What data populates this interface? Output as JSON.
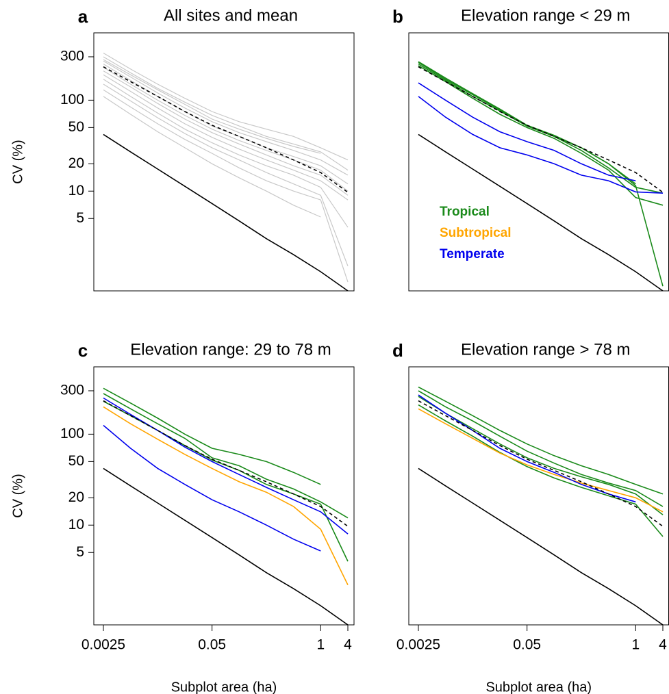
{
  "chart_data": [
    {
      "type": "line",
      "panel_label": "a",
      "title": "All sites and mean",
      "y_label": "CV (%)",
      "log_y": true,
      "ylim": [
        0.8,
        550
      ],
      "yticks": [
        5,
        10,
        20,
        50,
        100,
        300
      ],
      "categories": [
        null,
        null,
        null,
        null,
        null,
        null,
        null,
        null,
        null,
        null
      ],
      "series": [
        {
          "color": "#c8c8c8",
          "values": [
            330,
            220,
            150,
            105,
            75,
            58,
            48,
            40,
            30,
            22
          ]
        },
        {
          "color": "#c8c8c8",
          "values": [
            300,
            200,
            135,
            95,
            68,
            52,
            40,
            33,
            27,
            17
          ]
        },
        {
          "color": "#c8c8c8",
          "values": [
            270,
            180,
            120,
            82,
            58,
            44,
            35,
            28,
            22,
            15
          ]
        },
        {
          "color": "#c8c8c8",
          "values": [
            250,
            165,
            110,
            75,
            52,
            40,
            30,
            24,
            19,
            12
          ]
        },
        {
          "color": "#c8c8c8",
          "values": [
            230,
            150,
            100,
            68,
            48,
            36,
            28,
            22,
            17,
            10
          ]
        },
        {
          "color": "#c8c8c8",
          "values": [
            210,
            140,
            92,
            62,
            44,
            33,
            25,
            19,
            15,
            9
          ]
        },
        {
          "color": "#c8c8c8",
          "values": [
            190,
            125,
            82,
            55,
            39,
            29,
            22,
            17,
            13,
            8
          ]
        },
        {
          "color": "#c8c8c8",
          "values": [
            170,
            110,
            72,
            48,
            34,
            25,
            19,
            15,
            11,
            4
          ]
        },
        {
          "color": "#c8c8c8",
          "values": [
            150,
            98,
            64,
            43,
            30,
            22,
            16,
            12,
            9,
            1.5
          ]
        },
        {
          "color": "#c8c8c8",
          "values": [
            130,
            84,
            55,
            37,
            26,
            18,
            13,
            10,
            8,
            1
          ]
        },
        {
          "color": "#c8c8c8",
          "values": [
            110,
            70,
            45,
            30,
            20,
            14,
            10,
            7,
            5.2,
            null
          ]
        },
        {
          "color": "#c8c8c8",
          "values": [
            280,
            190,
            130,
            90,
            62,
            48,
            38,
            31,
            26,
            null
          ]
        },
        {
          "color": "#000000",
          "dashed": true,
          "values": [
            233,
            160,
            110,
            75,
            53,
            40,
            30,
            22,
            16,
            9.7
          ]
        },
        {
          "color": "#000000",
          "values": [
            42,
            27,
            17.5,
            11.3,
            7.3,
            4.7,
            3.0,
            2.0,
            1.3,
            0.8
          ]
        }
      ]
    },
    {
      "type": "line",
      "panel_label": "b",
      "title": "Elevation range < 29 m",
      "log_y": true,
      "ylim": [
        0.8,
        550
      ],
      "categories": [
        null,
        null,
        null,
        null,
        null,
        null,
        null,
        null,
        null,
        null
      ],
      "legend": [
        {
          "label": "Tropical",
          "color": "#1a8a1a"
        },
        {
          "label": "Subtropical",
          "color": "#ffa500"
        },
        {
          "label": "Temperate",
          "color": "#0000ee"
        }
      ],
      "series": [
        {
          "color": "#1a8a1a",
          "values": [
            260,
            170,
            115,
            78,
            52,
            40,
            28,
            18,
            11,
            9.5
          ]
        },
        {
          "color": "#1a8a1a",
          "values": [
            250,
            165,
            110,
            76,
            52,
            40,
            30,
            20,
            12,
            null
          ]
        },
        {
          "color": "#1a8a1a",
          "values": [
            240,
            160,
            105,
            70,
            50,
            38,
            26,
            17,
            8.5,
            7
          ]
        },
        {
          "color": "#1a8a1a",
          "values": [
            265,
            175,
            118,
            80,
            53,
            41,
            30,
            20,
            11.5,
            0.9
          ]
        },
        {
          "color": "#0000ee",
          "values": [
            155,
            100,
            65,
            45,
            35,
            28,
            20,
            15,
            13,
            null
          ]
        },
        {
          "color": "#0000ee",
          "values": [
            110,
            65,
            42,
            30,
            25,
            20,
            15,
            13,
            9.8,
            9.5
          ]
        },
        {
          "color": "#000000",
          "dashed": true,
          "values": [
            233,
            160,
            110,
            75,
            53,
            40,
            30,
            22,
            16,
            9.7
          ]
        },
        {
          "color": "#000000",
          "values": [
            42,
            27,
            17.5,
            11.3,
            7.3,
            4.7,
            3.0,
            2.0,
            1.3,
            0.8
          ]
        }
      ]
    },
    {
      "type": "line",
      "panel_label": "c",
      "title": "Elevation range: 29 to 78 m",
      "y_label": "CV (%)",
      "x_label": "Subplot area (ha)",
      "log_y": true,
      "ylim": [
        0.8,
        550
      ],
      "yticks": [
        5,
        10,
        20,
        50,
        100,
        300
      ],
      "categories": [
        "0.0025",
        null,
        null,
        null,
        "0.05",
        null,
        null,
        null,
        "1",
        "4"
      ],
      "series": [
        {
          "color": "#1a8a1a",
          "values": [
            320,
            220,
            150,
            100,
            70,
            60,
            50,
            38,
            28,
            null
          ]
        },
        {
          "color": "#1a8a1a",
          "values": [
            280,
            190,
            130,
            90,
            55,
            45,
            32,
            25,
            18,
            12
          ]
        },
        {
          "color": "#1a8a1a",
          "values": [
            230,
            160,
            110,
            75,
            52,
            40,
            28,
            22,
            17,
            4
          ]
        },
        {
          "color": "#ffa500",
          "values": [
            200,
            130,
            88,
            60,
            42,
            30,
            23,
            16,
            9,
            2.2
          ]
        },
        {
          "color": "#0000ee",
          "values": [
            125,
            70,
            42,
            28,
            19,
            14,
            10,
            7,
            5.2,
            null
          ]
        },
        {
          "color": "#0000ee",
          "values": [
            250,
            165,
            110,
            72,
            50,
            36,
            26,
            19,
            14,
            8
          ]
        },
        {
          "color": "#000000",
          "dashed": true,
          "values": [
            233,
            160,
            110,
            75,
            53,
            40,
            30,
            22,
            16,
            9.7
          ]
        },
        {
          "color": "#000000",
          "values": [
            42,
            27,
            17.5,
            11.3,
            7.3,
            4.7,
            3.0,
            2.0,
            1.3,
            0.8
          ]
        }
      ]
    },
    {
      "type": "line",
      "panel_label": "d",
      "title": "Elevation range > 78 m",
      "x_label": "Subplot area (ha)",
      "log_y": true,
      "ylim": [
        0.8,
        550
      ],
      "categories": [
        "0.0025",
        null,
        null,
        null,
        "0.05",
        null,
        null,
        null,
        "1",
        "4"
      ],
      "series": [
        {
          "color": "#1a8a1a",
          "values": [
            330,
            230,
            160,
            110,
            78,
            58,
            45,
            36,
            28,
            22
          ]
        },
        {
          "color": "#1a8a1a",
          "values": [
            300,
            200,
            140,
            95,
            65,
            48,
            36,
            29,
            24,
            16
          ]
        },
        {
          "color": "#1a8a1a",
          "values": [
            210,
            140,
            95,
            63,
            44,
            33,
            26,
            21,
            17,
            7.5
          ]
        },
        {
          "color": "#1a8a1a",
          "values": [
            260,
            170,
            115,
            78,
            55,
            42,
            34,
            28,
            22,
            13
          ]
        },
        {
          "color": "#ffa500",
          "values": [
            190,
            130,
            90,
            62,
            46,
            36,
            29,
            24,
            20,
            14
          ]
        },
        {
          "color": "#0000ee",
          "values": [
            270,
            170,
            110,
            70,
            50,
            38,
            28,
            22,
            18,
            null
          ]
        },
        {
          "color": "#000000",
          "dashed": true,
          "values": [
            233,
            160,
            110,
            75,
            53,
            40,
            30,
            22,
            16,
            9.7
          ]
        },
        {
          "color": "#000000",
          "values": [
            42,
            27,
            17.5,
            11.3,
            7.3,
            4.7,
            3.0,
            2.0,
            1.3,
            0.8
          ]
        }
      ]
    }
  ]
}
